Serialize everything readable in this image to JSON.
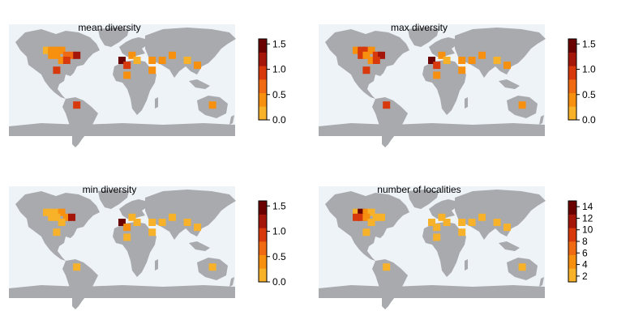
{
  "colors": {
    "ocean": "#eef3f8",
    "land": "#a9aaad",
    "scale": [
      "#f7b22a",
      "#f8900f",
      "#ef6a12",
      "#d7380c",
      "#a5160a",
      "#6b0000"
    ]
  },
  "panels": [
    {
      "title": "mean diversity",
      "scale": {
        "min": 0,
        "max": 1.6,
        "ticks": [
          "0.0",
          "0.5",
          "1.0",
          "1.5"
        ],
        "tick_values": [
          0,
          0.5,
          1.0,
          1.5
        ]
      },
      "cells": [
        {
          "lon": -120,
          "lat": 48,
          "v": 0.2
        },
        {
          "lon": -112,
          "lat": 48,
          "v": 0.3
        },
        {
          "lon": -104,
          "lat": 48,
          "v": 0.4
        },
        {
          "lon": -96,
          "lat": 48,
          "v": 0.4
        },
        {
          "lon": -112,
          "lat": 40,
          "v": 0.5
        },
        {
          "lon": -104,
          "lat": 40,
          "v": 0.3
        },
        {
          "lon": -88,
          "lat": 40,
          "v": 0.6
        },
        {
          "lon": -80,
          "lat": 40,
          "v": 0.6
        },
        {
          "lon": -96,
          "lat": 32,
          "v": 0.3
        },
        {
          "lon": -88,
          "lat": 32,
          "v": 0.9
        },
        {
          "lon": -72,
          "lat": 40,
          "v": 1.2
        },
        {
          "lon": -104,
          "lat": 16,
          "v": 0.8
        },
        {
          "lon": 0,
          "lat": 32,
          "v": 1.6
        },
        {
          "lon": 8,
          "lat": 24,
          "v": 0.8
        },
        {
          "lon": 16,
          "lat": 40,
          "v": 0.3
        },
        {
          "lon": 24,
          "lat": 32,
          "v": 0.2
        },
        {
          "lon": 8,
          "lat": 8,
          "v": 0.3
        },
        {
          "lon": 48,
          "lat": 32,
          "v": 0.3
        },
        {
          "lon": 64,
          "lat": 32,
          "v": 0.3
        },
        {
          "lon": 80,
          "lat": 40,
          "v": 0.3
        },
        {
          "lon": 104,
          "lat": 32,
          "v": 0.2
        },
        {
          "lon": 48,
          "lat": 16,
          "v": 0.3
        },
        {
          "lon": 120,
          "lat": 24,
          "v": 0.3
        },
        {
          "lon": -72,
          "lat": -40,
          "v": 0.8
        },
        {
          "lon": 144,
          "lat": -40,
          "v": 0.3
        }
      ]
    },
    {
      "title": "max diversity",
      "scale": {
        "min": 0,
        "max": 1.6,
        "ticks": [
          "0.0",
          "0.5",
          "1.0",
          "1.5"
        ],
        "tick_values": [
          0,
          0.5,
          1.0,
          1.5
        ]
      },
      "cells": [
        {
          "lon": -120,
          "lat": 48,
          "v": 0.3
        },
        {
          "lon": -112,
          "lat": 48,
          "v": 1.0
        },
        {
          "lon": -104,
          "lat": 48,
          "v": 1.0
        },
        {
          "lon": -96,
          "lat": 48,
          "v": 0.3
        },
        {
          "lon": -112,
          "lat": 40,
          "v": 1.0
        },
        {
          "lon": -104,
          "lat": 40,
          "v": 0.3
        },
        {
          "lon": -88,
          "lat": 40,
          "v": 1.0
        },
        {
          "lon": -80,
          "lat": 40,
          "v": 1.2
        },
        {
          "lon": -96,
          "lat": 32,
          "v": 0.3
        },
        {
          "lon": -88,
          "lat": 32,
          "v": 0.9
        },
        {
          "lon": -104,
          "lat": 16,
          "v": 0.8
        },
        {
          "lon": 0,
          "lat": 32,
          "v": 1.6
        },
        {
          "lon": 8,
          "lat": 24,
          "v": 0.8
        },
        {
          "lon": 16,
          "lat": 40,
          "v": 0.3
        },
        {
          "lon": 24,
          "lat": 32,
          "v": 0.2
        },
        {
          "lon": 8,
          "lat": 8,
          "v": 0.3
        },
        {
          "lon": 48,
          "lat": 32,
          "v": 0.3
        },
        {
          "lon": 64,
          "lat": 32,
          "v": 0.3
        },
        {
          "lon": 80,
          "lat": 40,
          "v": 0.3
        },
        {
          "lon": 104,
          "lat": 32,
          "v": 0.2
        },
        {
          "lon": 48,
          "lat": 16,
          "v": 0.3
        },
        {
          "lon": 120,
          "lat": 24,
          "v": 0.3
        },
        {
          "lon": -72,
          "lat": -40,
          "v": 0.8
        },
        {
          "lon": 144,
          "lat": -40,
          "v": 0.3
        }
      ]
    },
    {
      "title": "min diversity",
      "scale": {
        "min": 0,
        "max": 1.6,
        "ticks": [
          "0.0",
          "0.5",
          "1.0",
          "1.5"
        ],
        "tick_values": [
          0,
          0.5,
          1.0,
          1.5
        ]
      },
      "cells": [
        {
          "lon": -120,
          "lat": 48,
          "v": 0.2
        },
        {
          "lon": -112,
          "lat": 48,
          "v": 0.2
        },
        {
          "lon": -104,
          "lat": 48,
          "v": 0.2
        },
        {
          "lon": -96,
          "lat": 48,
          "v": 0.3
        },
        {
          "lon": -112,
          "lat": 40,
          "v": 0.2
        },
        {
          "lon": -104,
          "lat": 40,
          "v": 0.2
        },
        {
          "lon": -88,
          "lat": 40,
          "v": 0.3
        },
        {
          "lon": -80,
          "lat": 40,
          "v": 1.2
        },
        {
          "lon": -96,
          "lat": 32,
          "v": 0.2
        },
        {
          "lon": -104,
          "lat": 16,
          "v": 0.2
        },
        {
          "lon": 0,
          "lat": 32,
          "v": 1.6
        },
        {
          "lon": 8,
          "lat": 24,
          "v": 0.3
        },
        {
          "lon": 16,
          "lat": 40,
          "v": 0.2
        },
        {
          "lon": 24,
          "lat": 32,
          "v": 0.2
        },
        {
          "lon": 8,
          "lat": 8,
          "v": 0.2
        },
        {
          "lon": 48,
          "lat": 32,
          "v": 0.2
        },
        {
          "lon": 64,
          "lat": 32,
          "v": 0.2
        },
        {
          "lon": 80,
          "lat": 40,
          "v": 0.2
        },
        {
          "lon": 104,
          "lat": 32,
          "v": 0.2
        },
        {
          "lon": 48,
          "lat": 16,
          "v": 0.2
        },
        {
          "lon": 120,
          "lat": 24,
          "v": 0.2
        },
        {
          "lon": -72,
          "lat": -40,
          "v": 0.2
        },
        {
          "lon": 144,
          "lat": -40,
          "v": 0.2
        }
      ]
    },
    {
      "title": "number of localities",
      "scale": {
        "min": 1,
        "max": 15,
        "ticks": [
          "2",
          "4",
          "6",
          "8",
          "10",
          "12",
          "14"
        ],
        "tick_values": [
          2,
          4,
          6,
          8,
          10,
          12,
          14
        ]
      },
      "cells": [
        {
          "lon": -120,
          "lat": 48,
          "v": 2
        },
        {
          "lon": -112,
          "lat": 48,
          "v": 15
        },
        {
          "lon": -104,
          "lat": 48,
          "v": 5
        },
        {
          "lon": -96,
          "lat": 48,
          "v": 2
        },
        {
          "lon": -120,
          "lat": 40,
          "v": 8
        },
        {
          "lon": -112,
          "lat": 40,
          "v": 8
        },
        {
          "lon": -104,
          "lat": 40,
          "v": 4
        },
        {
          "lon": -88,
          "lat": 40,
          "v": 2
        },
        {
          "lon": -80,
          "lat": 40,
          "v": 3
        },
        {
          "lon": -96,
          "lat": 32,
          "v": 2
        },
        {
          "lon": -104,
          "lat": 16,
          "v": 2
        },
        {
          "lon": 0,
          "lat": 32,
          "v": 2
        },
        {
          "lon": 8,
          "lat": 24,
          "v": 2
        },
        {
          "lon": 16,
          "lat": 40,
          "v": 2
        },
        {
          "lon": 24,
          "lat": 32,
          "v": 2
        },
        {
          "lon": 8,
          "lat": 8,
          "v": 2
        },
        {
          "lon": 48,
          "lat": 32,
          "v": 2
        },
        {
          "lon": 64,
          "lat": 32,
          "v": 2
        },
        {
          "lon": 80,
          "lat": 40,
          "v": 2
        },
        {
          "lon": 104,
          "lat": 32,
          "v": 2
        },
        {
          "lon": 48,
          "lat": 16,
          "v": 2
        },
        {
          "lon": 120,
          "lat": 24,
          "v": 2
        },
        {
          "lon": -72,
          "lat": -40,
          "v": 2
        },
        {
          "lon": 144,
          "lat": -40,
          "v": 2
        }
      ]
    }
  ]
}
